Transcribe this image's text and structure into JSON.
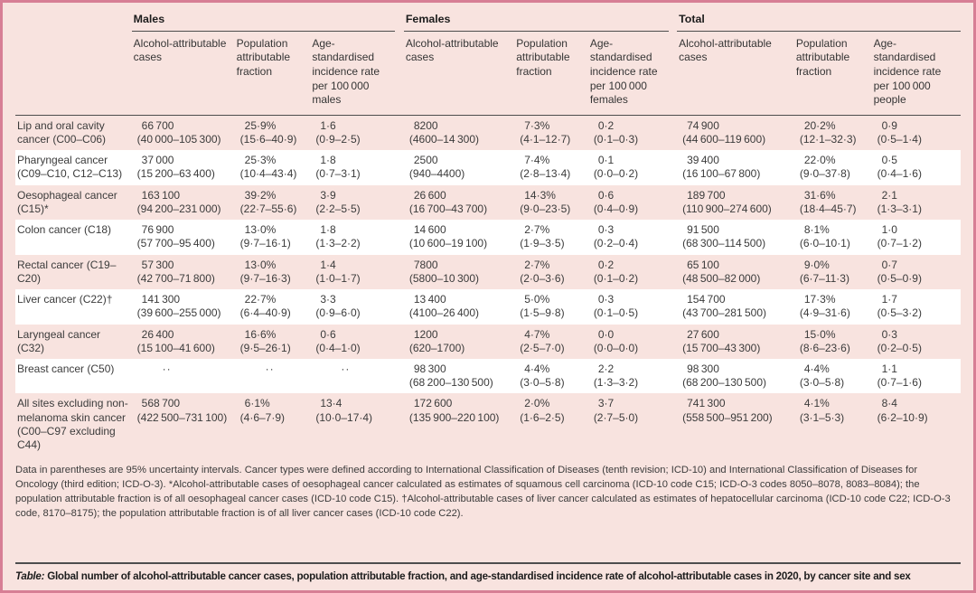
{
  "colors": {
    "frame_border": "#d77e95",
    "background": "#f8e3df",
    "white_row": "#ffffff",
    "rule": "#4d4d4d",
    "text": "#3b3b3b"
  },
  "table": {
    "groups": [
      {
        "label": "Males",
        "columns": [
          "Alcohol-attributable cases",
          "Population attributable fraction",
          "Age-standardised incidence rate per 100 000 males"
        ]
      },
      {
        "label": "Females",
        "columns": [
          "Alcohol-attributable cases",
          "Population attributable fraction",
          "Age-standardised incidence rate per 100 000 females"
        ]
      },
      {
        "label": "Total",
        "columns": [
          "Alcohol-attributable cases",
          "Population attributable fraction",
          "Age-standardised incidence rate per 100 000 people"
        ]
      }
    ],
    "rows": [
      {
        "site": "Lip and oral cavity cancer (C00–C06)",
        "values": [
          "66 700",
          "25·9%",
          "1·6",
          "8200",
          "7·3%",
          "0·2",
          "74 900",
          "20·2%",
          "0·9"
        ],
        "cis": [
          "(40 000–105 300)",
          "(15·6–40·9)",
          "(0·9–2·5)",
          "(4600–14 300)",
          "(4·1–12·7)",
          "(0·1–0·3)",
          "(44 600–119 600)",
          "(12·1–32·3)",
          "(0·5–1·4)"
        ]
      },
      {
        "site": "Pharyngeal cancer (C09–C10, C12–C13)",
        "values": [
          "37 000",
          "25·3%",
          "1·8",
          "2500",
          "7·4%",
          "0·1",
          "39 400",
          "22·0%",
          "0·5"
        ],
        "cis": [
          "(15 200–63 400)",
          "(10·4–43·4)",
          "(0·7–3·1)",
          "(940–4400)",
          "(2·8–13·4)",
          "(0·0–0·2)",
          "(16 100–67 800)",
          "(9·0–37·8)",
          "(0·4–1·6)"
        ]
      },
      {
        "site": "Oesophageal cancer (C15)*",
        "values": [
          "163 100",
          "39·2%",
          "3·9",
          "26 600",
          "14·3%",
          "0·6",
          "189 700",
          "31·6%",
          "2·1"
        ],
        "cis": [
          "(94 200–231 000)",
          "(22·7–55·6)",
          "(2·2–5·5)",
          "(16 700–43 700)",
          "(9·0–23·5)",
          "(0·4–0·9)",
          "(110 900–274 600)",
          "(18·4–45·7)",
          "(1·3–3·1)"
        ]
      },
      {
        "site": "Colon cancer (C18)",
        "values": [
          "76 900",
          "13·0%",
          "1·8",
          "14 600",
          "2·7%",
          "0·3",
          "91 500",
          "8·1%",
          "1·0"
        ],
        "cis": [
          "(57 700–95 400)",
          "(9·7–16·1)",
          "(1·3–2·2)",
          "(10 600–19 100)",
          "(1·9–3·5)",
          "(0·2–0·4)",
          "(68 300–114 500)",
          "(6·0–10·1)",
          "(0·7–1·2)"
        ]
      },
      {
        "site": "Rectal cancer (C19–C20)",
        "values": [
          "57 300",
          "13·0%",
          "1·4",
          "7800",
          "2·7%",
          "0·2",
          "65 100",
          "9·0%",
          "0·7"
        ],
        "cis": [
          "(42 700–71 800)",
          "(9·7–16·3)",
          "(1·0–1·7)",
          "(5800–10 300)",
          "(2·0–3·6)",
          "(0·1–0·2)",
          "(48 500–82 000)",
          "(6·7–11·3)",
          "(0·5–0·9)"
        ]
      },
      {
        "site": "Liver cancer (C22)†",
        "values": [
          "141 300",
          "22·7%",
          "3·3",
          "13 400",
          "5·0%",
          "0·3",
          "154 700",
          "17·3%",
          "1·7"
        ],
        "cis": [
          "(39 600–255 000)",
          "(6·4–40·9)",
          "(0·9–6·0)",
          "(4100–26 400)",
          "(1·5–9·8)",
          "(0·1–0·5)",
          "(43 700–281 500)",
          "(4·9–31·6)",
          "(0·5–3·2)"
        ]
      },
      {
        "site": "Laryngeal cancer (C32)",
        "values": [
          "26 400",
          "16·6%",
          "0·6",
          "1200",
          "4·7%",
          "0·0",
          "27 600",
          "15·0%",
          "0·3"
        ],
        "cis": [
          "(15 100–41 600)",
          "(9·5–26·1)",
          "(0·4–1·0)",
          "(620–1700)",
          "(2·5–7·0)",
          "(0·0–0·0)",
          "(15 700–43 300)",
          "(8·6–23·6)",
          "(0·2–0·5)"
        ]
      },
      {
        "site": "Breast cancer (C50)",
        "values": [
          "··",
          "··",
          "··",
          "98 300",
          "4·4%",
          "2·2",
          "98 300",
          "4·4%",
          "1·1"
        ],
        "cis": [
          "",
          "",
          "",
          "(68 200–130 500)",
          "(3·0–5·8)",
          "(1·3–3·2)",
          "(68 200–130 500)",
          "(3·0–5·8)",
          "(0·7–1·6)"
        ]
      },
      {
        "site": "All sites excluding non-melanoma skin cancer (C00–C97 excluding C44)",
        "values": [
          "568 700",
          "6·1%",
          "13·4",
          "172 600",
          "2·0%",
          "3·7",
          "741 300",
          "4·1%",
          "8·4"
        ],
        "cis": [
          "(422 500–731 100)",
          "(4·6–7·9)",
          "(10·0–17·4)",
          "(135 900–220 100)",
          "(1·6–2·5)",
          "(2·7–5·0)",
          "(558 500–951 200)",
          "(3·1–5·3)",
          "(6·2–10·9)"
        ]
      }
    ]
  },
  "footnote": "Data in parentheses are 95% uncertainty intervals. Cancer types were defined according to International Classification of Diseases (tenth revision; ICD-10) and International Classification of Diseases for Oncology (third edition; ICD-O-3). *Alcohol-attributable cases of oesophageal cancer calculated as estimates of squamous cell carcinoma (ICD-10 code C15; ICD-O-3 codes 8050–8078, 8083–8084); the population attributable fraction is of all oesophageal cancer cases (ICD-10 code C15). †Alcohol-attributable cases of liver cancer calculated as estimates of hepatocellular carcinoma (ICD-10 code C22; ICD-O-3 code, 8170–8175); the population attributable fraction is of all liver cancer cases (ICD-10 code C22).",
  "caption": {
    "label": "Table:",
    "text": " Global number of alcohol-attributable cancer cases, population attributable fraction, and age-standardised incidence rate of alcohol-attributable cases in 2020, by cancer site and sex"
  }
}
